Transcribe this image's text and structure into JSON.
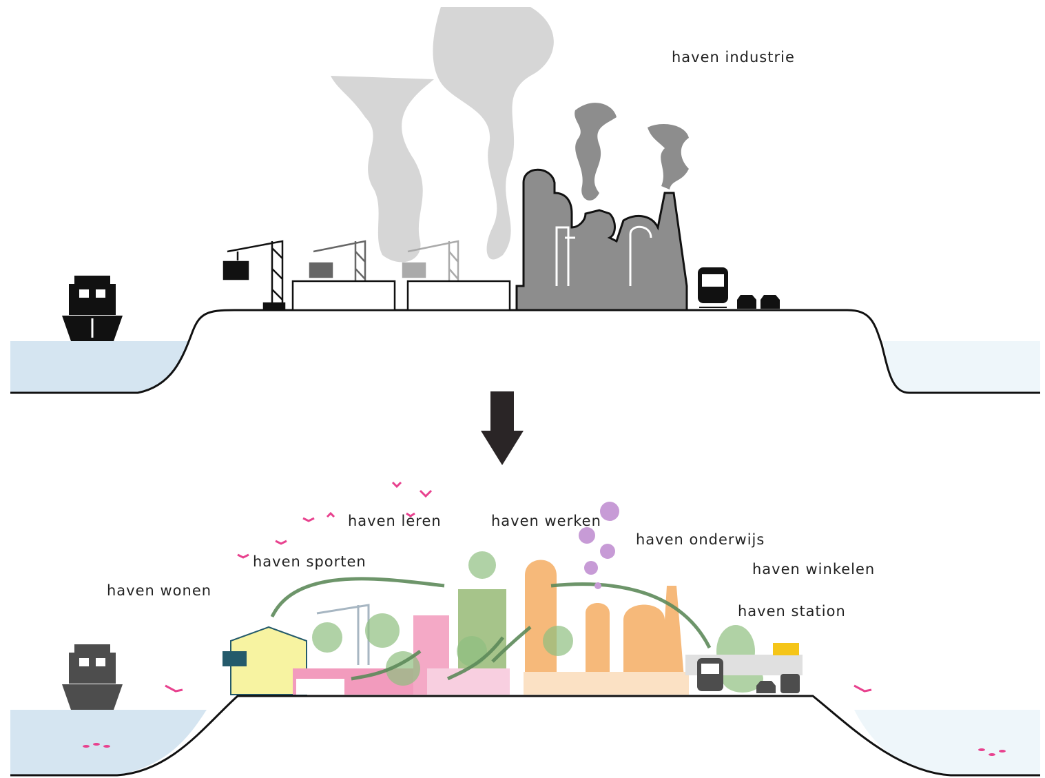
{
  "labels": {
    "industrie": "haven industrie",
    "leren": "haven leren",
    "werken": "haven werken",
    "onderwijs": "haven onderwijs",
    "winkelen": "haven winkelen",
    "sporten": "haven sporten",
    "wonen": "haven wonen",
    "station": "haven station"
  }
}
